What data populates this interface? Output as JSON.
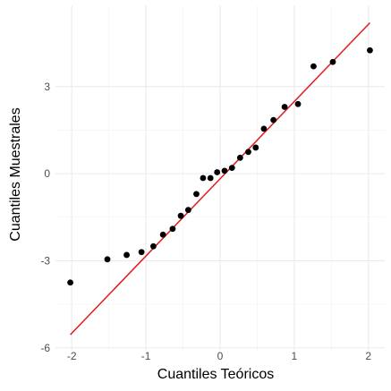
{
  "chart_data": {
    "type": "scatter",
    "title": "",
    "xlabel": "Cuantiles Teóricos",
    "ylabel": "Cuantiles Muestrales",
    "xlim": [
      -2.22,
      2.22
    ],
    "ylim": [
      -6.1,
      5.8
    ],
    "x_ticks": [
      -2,
      -1,
      0,
      1,
      2
    ],
    "x_tick_labels": [
      "-2",
      "-1",
      "0",
      "1",
      "2"
    ],
    "y_ticks": [
      -6,
      -3,
      0,
      3
    ],
    "y_tick_labels": [
      "-6",
      "-3",
      "0",
      "3"
    ],
    "grid": true,
    "point_color": "#000000",
    "line_color": "#e31a1c",
    "points": [
      {
        "x": -2.02,
        "y": -3.75
      },
      {
        "x": -1.52,
        "y": -2.95
      },
      {
        "x": -1.26,
        "y": -2.8
      },
      {
        "x": -1.06,
        "y": -2.7
      },
      {
        "x": -0.9,
        "y": -2.5
      },
      {
        "x": -0.77,
        "y": -2.1
      },
      {
        "x": -0.64,
        "y": -1.9
      },
      {
        "x": -0.53,
        "y": -1.45
      },
      {
        "x": -0.43,
        "y": -1.25
      },
      {
        "x": -0.32,
        "y": -0.7
      },
      {
        "x": -0.23,
        "y": -0.15
      },
      {
        "x": -0.13,
        "y": -0.15
      },
      {
        "x": -0.04,
        "y": 0.05
      },
      {
        "x": 0.06,
        "y": 0.1
      },
      {
        "x": 0.16,
        "y": 0.2
      },
      {
        "x": 0.27,
        "y": 0.55
      },
      {
        "x": 0.38,
        "y": 0.75
      },
      {
        "x": 0.48,
        "y": 0.9
      },
      {
        "x": 0.59,
        "y": 1.55
      },
      {
        "x": 0.72,
        "y": 1.85
      },
      {
        "x": 0.87,
        "y": 2.3
      },
      {
        "x": 1.05,
        "y": 2.4
      },
      {
        "x": 1.26,
        "y": 3.7
      },
      {
        "x": 1.52,
        "y": 3.85
      },
      {
        "x": 2.02,
        "y": 4.25
      }
    ],
    "reference_line": {
      "x": [
        -2.02,
        2.02
      ],
      "y": [
        -5.55,
        5.2
      ]
    }
  }
}
